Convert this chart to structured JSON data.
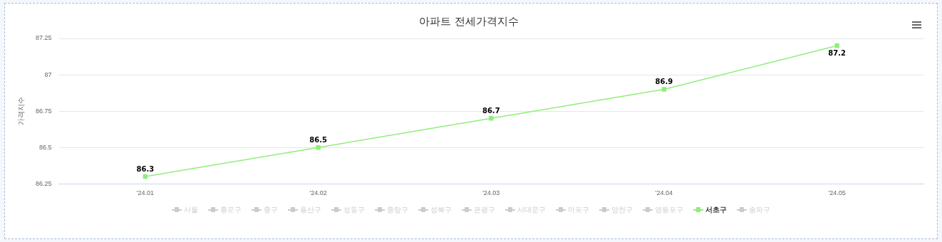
{
  "chart_data": {
    "type": "line",
    "title": "아파트 전세가격지수",
    "ylabel": "가격지수",
    "categories": [
      "'24.01",
      "'24.02",
      "'24.03",
      "'24.04",
      "'24.05"
    ],
    "ylim": [
      86.25,
      87.25
    ],
    "yticks": [
      86.25,
      86.5,
      86.75,
      87,
      87.25
    ],
    "grid": "y",
    "legend": "bottom",
    "marker": "square",
    "data_labels": true,
    "series": [
      {
        "name": "서울",
        "color": "#cccccc",
        "values": [
          null,
          null,
          null,
          null,
          null
        ]
      },
      {
        "name": "종로구",
        "color": "#cccccc",
        "values": [
          null,
          null,
          null,
          null,
          null
        ]
      },
      {
        "name": "중구",
        "color": "#cccccc",
        "values": [
          null,
          null,
          null,
          null,
          null
        ]
      },
      {
        "name": "용산구",
        "color": "#cccccc",
        "values": [
          null,
          null,
          null,
          null,
          null
        ]
      },
      {
        "name": "성동구",
        "color": "#cccccc",
        "values": [
          null,
          null,
          null,
          null,
          null
        ]
      },
      {
        "name": "중랑구",
        "color": "#cccccc",
        "values": [
          null,
          null,
          null,
          null,
          null
        ]
      },
      {
        "name": "성북구",
        "color": "#cccccc",
        "values": [
          null,
          null,
          null,
          null,
          null
        ]
      },
      {
        "name": "은평구",
        "color": "#cccccc",
        "values": [
          null,
          null,
          null,
          null,
          null
        ]
      },
      {
        "name": "서대문구",
        "color": "#cccccc",
        "values": [
          null,
          null,
          null,
          null,
          null
        ]
      },
      {
        "name": "마포구",
        "color": "#cccccc",
        "values": [
          null,
          null,
          null,
          null,
          null
        ]
      },
      {
        "name": "양천구",
        "color": "#cccccc",
        "values": [
          null,
          null,
          null,
          null,
          null
        ]
      },
      {
        "name": "영등포구",
        "color": "#cccccc",
        "values": [
          null,
          null,
          null,
          null,
          null
        ]
      },
      {
        "name": "서초구",
        "color": "#90ed7d",
        "values": [
          86.3,
          86.5,
          86.7,
          86.9,
          87.2
        ]
      },
      {
        "name": "송파구",
        "color": "#cccccc",
        "values": [
          null,
          null,
          null,
          null,
          null
        ]
      }
    ]
  }
}
